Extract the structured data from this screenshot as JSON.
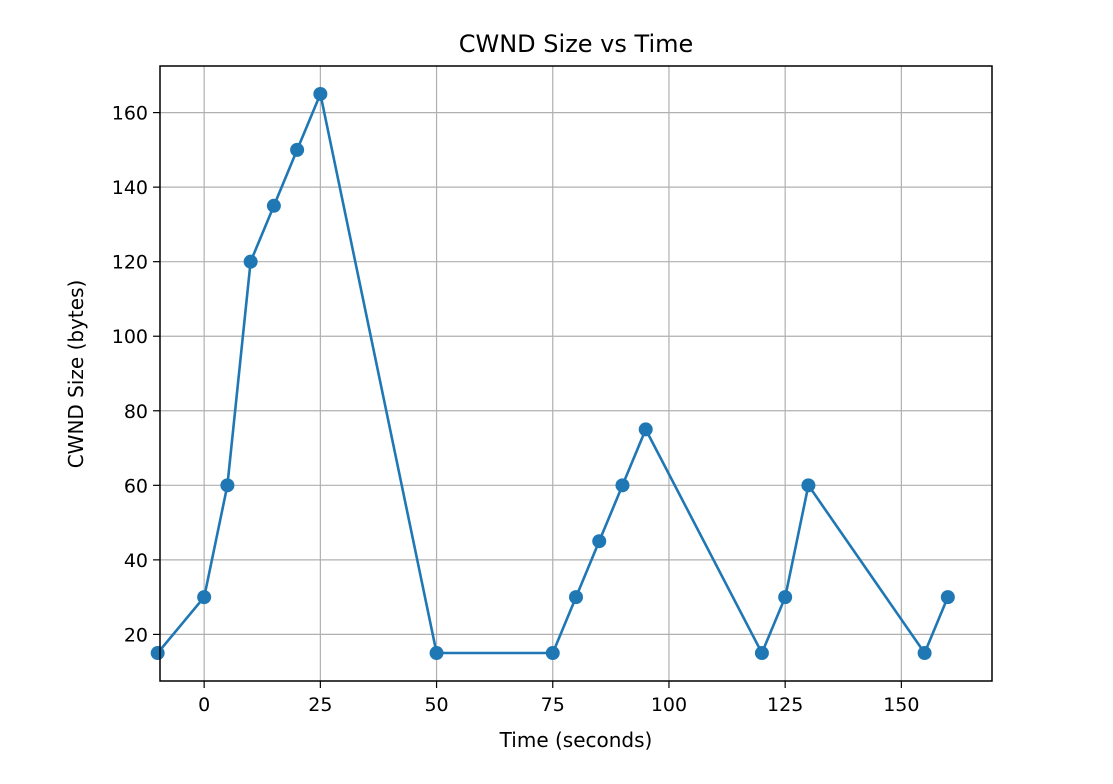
{
  "chart_data": {
    "type": "line",
    "title": "CWND Size vs Time",
    "xlabel": "Time (seconds)",
    "ylabel": "CWND Size (bytes)",
    "xlim": [
      -9.5,
      169.5
    ],
    "ylim": [
      7.5,
      172.5
    ],
    "xticks": [
      0,
      25,
      50,
      75,
      100,
      125,
      150
    ],
    "yticks": [
      20,
      40,
      60,
      80,
      100,
      120,
      140,
      160
    ],
    "grid": true,
    "legend": "none",
    "series": [
      {
        "color": "#1f77b4",
        "marker": "circle",
        "x": [
          -10,
          0,
          5,
          10,
          15,
          20,
          25,
          50,
          75,
          80,
          85,
          90,
          95,
          120,
          125,
          130,
          155,
          160
        ],
        "y": [
          15,
          30,
          60,
          120,
          135,
          150,
          165,
          15,
          15,
          30,
          45,
          60,
          75,
          15,
          30,
          60,
          15,
          30
        ]
      }
    ]
  }
}
